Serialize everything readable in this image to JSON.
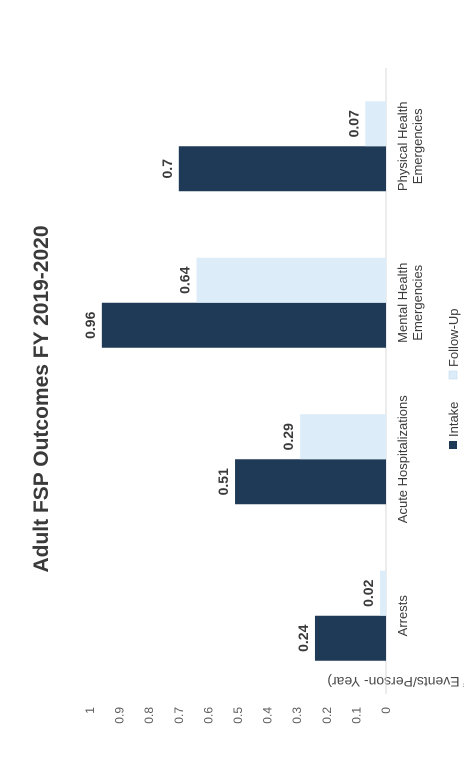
{
  "chart_data": {
    "type": "bar",
    "orientation": "vertical",
    "title": "Adult FSP Outcomes FY 2019-2020",
    "ylabel": "Event Rate (# of Events/Person- Year)",
    "xlabel": "",
    "ylim": [
      0,
      1
    ],
    "yticks": [
      "0",
      "0.1",
      "0.2",
      "0.3",
      "0.4",
      "0.5",
      "0.6",
      "0.7",
      "0.8",
      "0.9",
      "1"
    ],
    "categories": [
      [
        "Arrests"
      ],
      [
        "Acute Hospitalizations"
      ],
      [
        "Mental Health",
        "Emergencies"
      ],
      [
        "Physical Health",
        "Emergencies"
      ]
    ],
    "series": [
      {
        "name": "Intake",
        "values": [
          0.24,
          0.51,
          0.96,
          0.7
        ],
        "labels": [
          "0.24",
          "0.51",
          "0.96",
          "0.7"
        ],
        "color": "#1f3a56"
      },
      {
        "name": "Follow-Up",
        "values": [
          0.02,
          0.29,
          0.64,
          0.07
        ],
        "labels": [
          "0.02",
          "0.29",
          "0.64",
          "0.07"
        ],
        "color": "#dcecf8"
      }
    ],
    "legend_position": "bottom",
    "grid": false,
    "rotation_deg": -90
  }
}
